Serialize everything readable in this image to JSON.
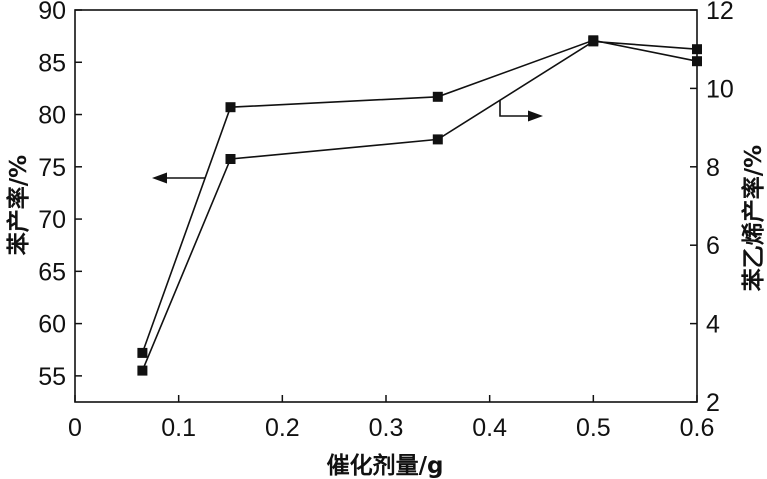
{
  "chart_data": {
    "type": "line",
    "xlabel": "催化剂量/g",
    "ylabel": "苯产率/%",
    "y2label": "苯乙烯产率/%",
    "xlim": [
      0,
      0.6
    ],
    "ylim": [
      52.5,
      90
    ],
    "y2lim": [
      2,
      12
    ],
    "xticks": [
      0,
      0.1,
      0.2,
      0.3,
      0.4,
      0.5,
      0.6
    ],
    "yticks": [
      55,
      60,
      65,
      70,
      75,
      80,
      85,
      90
    ],
    "y2ticks": [
      2,
      4,
      6,
      8,
      10,
      12
    ],
    "grid": false,
    "x": [
      0.065,
      0.15,
      0.35,
      0.5,
      0.6
    ],
    "series": [
      {
        "axis": "left",
        "marker": "square",
        "color": "#111111",
        "values": [
          57.2,
          80.7,
          81.7,
          87.1,
          85.1
        ]
      },
      {
        "axis": "right",
        "marker": "square",
        "color": "#111111",
        "values": [
          2.8,
          8.2,
          8.7,
          11.2,
          11.0
        ]
      }
    ]
  }
}
